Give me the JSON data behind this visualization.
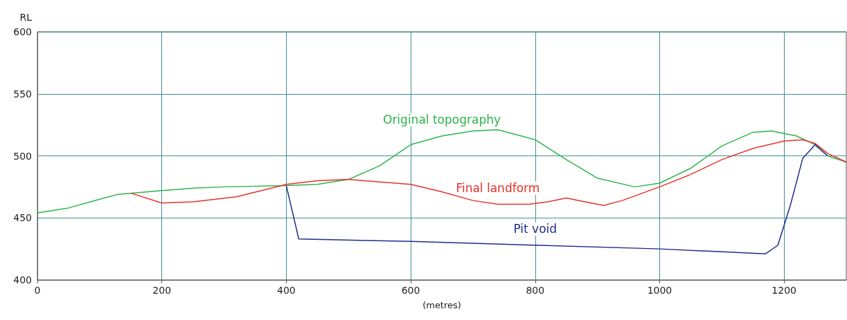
{
  "chart_data": {
    "type": "line",
    "xlabel": "(metres)",
    "ylabel": "RL",
    "xlim": [
      0,
      1300
    ],
    "xticks": [
      0,
      200,
      400,
      600,
      800,
      1000,
      1200
    ],
    "ylim": [
      400,
      600
    ],
    "yticks": [
      400,
      450,
      500,
      550,
      600
    ],
    "grid": true,
    "marker": "none",
    "line_style": "solid",
    "series": [
      {
        "name": "Original topography",
        "color": "#2db34a",
        "x": [
          0,
          50,
          100,
          130,
          200,
          250,
          300,
          400,
          450,
          500,
          550,
          600,
          650,
          700,
          740,
          800,
          850,
          900,
          960,
          1000,
          1050,
          1100,
          1150,
          1180,
          1220,
          1250,
          1270,
          1300
        ],
        "values": [
          454,
          458,
          465,
          469,
          472,
          474,
          475,
          476,
          477,
          481,
          492,
          509,
          516,
          520,
          521,
          513,
          497,
          482,
          475,
          478,
          490,
          508,
          519,
          520,
          516,
          509,
          500,
          495
        ]
      },
      {
        "name": "Final landform",
        "color": "#e8302a",
        "x": [
          150,
          200,
          250,
          320,
          400,
          450,
          500,
          550,
          600,
          650,
          700,
          740,
          790,
          820,
          850,
          880,
          910,
          940,
          1000,
          1050,
          1100,
          1150,
          1200,
          1230,
          1250,
          1270,
          1300
        ],
        "values": [
          470,
          462,
          463,
          467,
          477,
          480,
          481,
          479,
          477,
          471,
          464,
          461,
          461,
          463,
          466,
          463,
          460,
          464,
          475,
          485,
          497,
          506,
          512,
          513,
          510,
          502,
          495
        ]
      },
      {
        "name": "Pit void",
        "color": "#1f2a8a",
        "x": [
          400,
          420,
          600,
          800,
          1000,
          1170,
          1190,
          1210,
          1230,
          1250,
          1270
        ],
        "values": [
          476,
          433,
          431,
          428,
          425,
          421,
          428,
          460,
          498,
          509,
          500
        ]
      }
    ]
  }
}
